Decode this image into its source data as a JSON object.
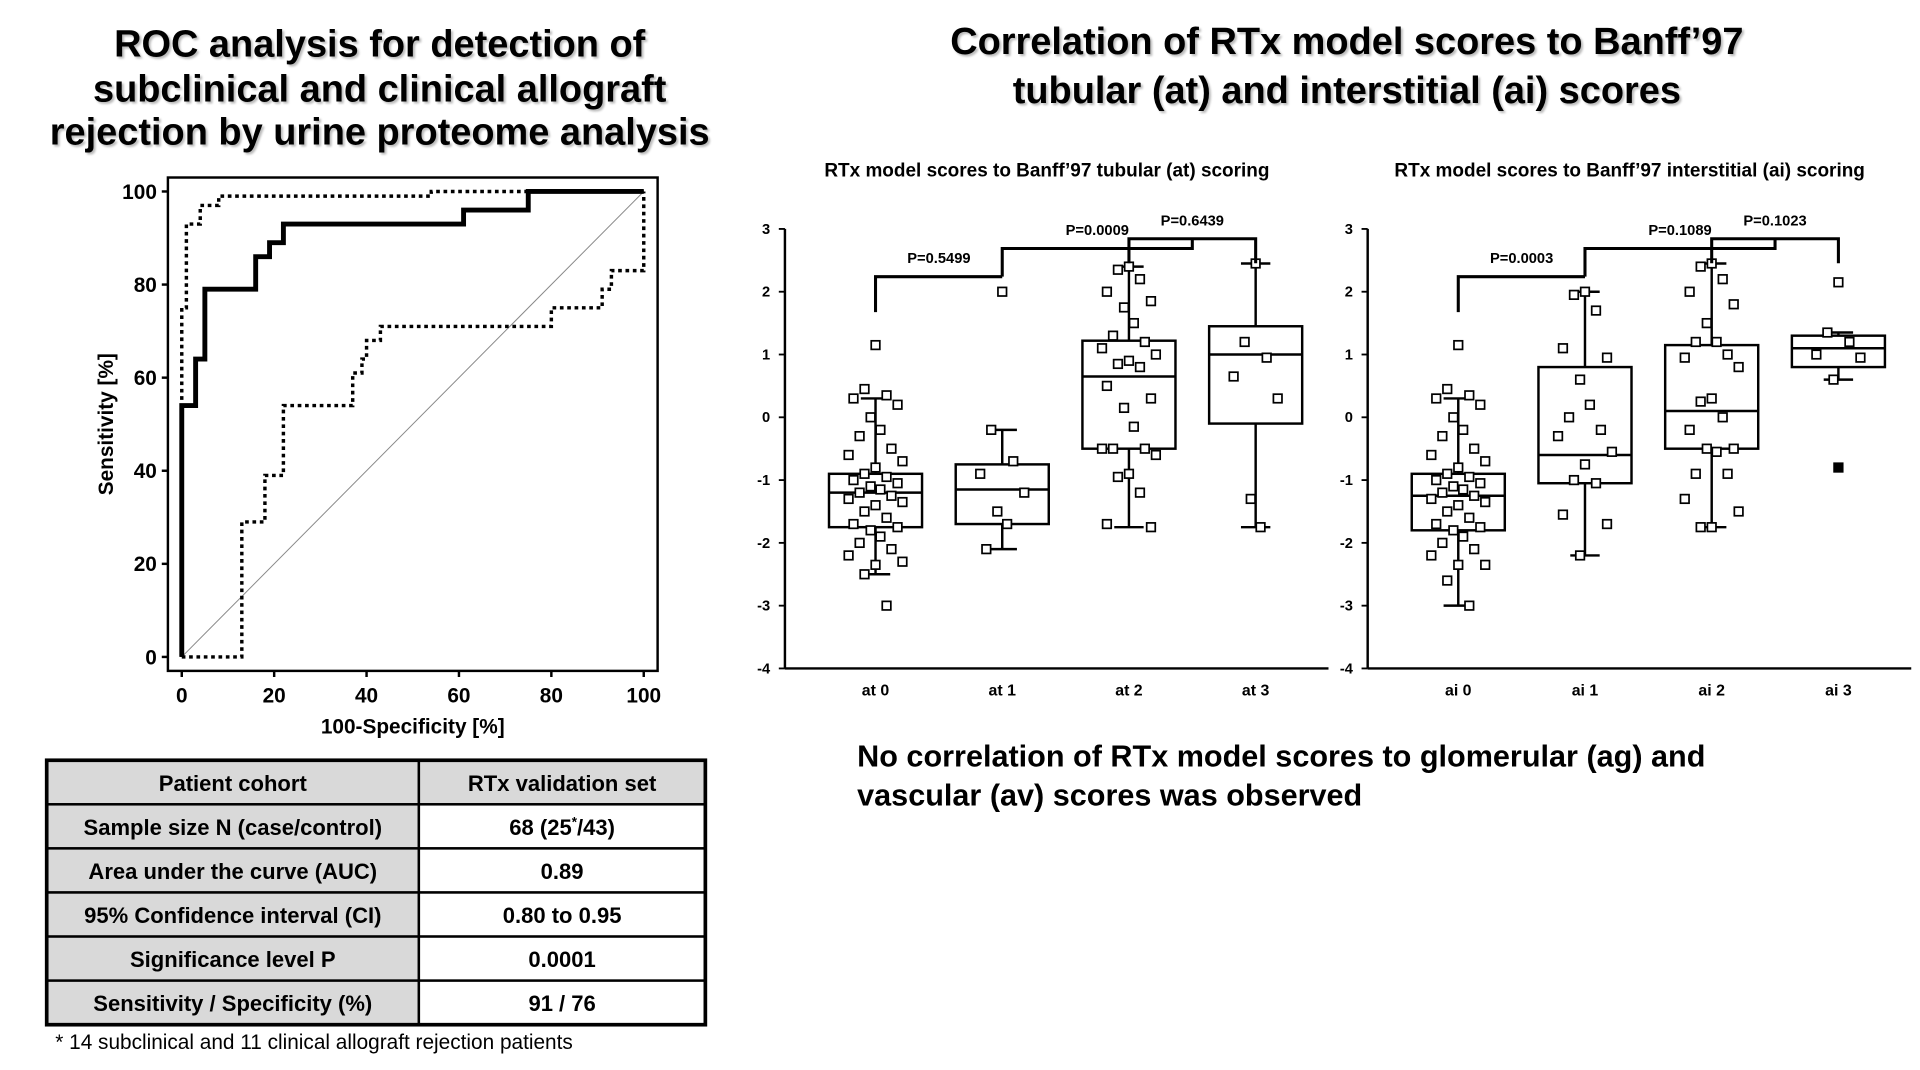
{
  "titles": {
    "left": [
      "ROC analysis for detection of",
      "subclinical and clinical allograft",
      "rejection by urine proteome analysis"
    ],
    "right": [
      "Correlation of RTx model scores to Banff’97",
      "tubular (at) and interstitial (ai) scores"
    ]
  },
  "note": [
    "No correlation of RTx model scores to glomerular (ag) and",
    "vascular (av) scores was observed"
  ],
  "chart_data": [
    {
      "type": "line",
      "xlabel": "100-Specificity [%]",
      "ylabel": "Sensitivity [%]",
      "xlim": [
        -3,
        103
      ],
      "ylim": [
        -3,
        103
      ],
      "xticks": [
        0,
        20,
        40,
        60,
        80,
        100
      ],
      "yticks": [
        0,
        20,
        40,
        60,
        80,
        100
      ],
      "series": [
        {
          "color": "#888888",
          "line_style": "thin",
          "x": [
            0,
            100
          ],
          "values": [
            0,
            100
          ]
        },
        {
          "color": "#000000",
          "line_style": "dotted",
          "x": [
            0,
            0,
            1,
            1,
            4,
            4,
            8,
            8,
            54,
            54,
            100
          ],
          "values": [
            0,
            75,
            75,
            93,
            93,
            97,
            97,
            99,
            99,
            100,
            100
          ]
        },
        {
          "color": "#000000",
          "line_style": "dotted",
          "x": [
            0,
            13,
            13,
            18,
            18,
            22,
            22,
            37,
            37,
            39,
            39,
            40,
            40,
            43,
            43,
            80,
            80,
            91,
            91,
            93,
            93,
            100,
            100
          ],
          "values": [
            0,
            0,
            29,
            29,
            39,
            39,
            54,
            54,
            61,
            61,
            64,
            64,
            68,
            68,
            71,
            71,
            75,
            75,
            79,
            79,
            83,
            83,
            100
          ]
        },
        {
          "color": "#000000",
          "line_style": "solid",
          "x": [
            0,
            0,
            3,
            3,
            5,
            5,
            16,
            16,
            19,
            19,
            22,
            22,
            61,
            61,
            75,
            75,
            100
          ],
          "values": [
            0,
            54,
            54,
            64,
            64,
            79,
            79,
            86,
            86,
            89,
            89,
            93,
            93,
            96,
            96,
            100,
            100
          ]
        }
      ]
    },
    {
      "type": "box",
      "title": "RTx model scores to Banff’97 tubular (at) scoring",
      "categories": [
        "at 0",
        "at 1",
        "at 2",
        "at 3"
      ],
      "ylim": [
        -4,
        3
      ],
      "yticks": [
        -4,
        -3,
        -2,
        -1,
        0,
        1,
        2,
        3
      ],
      "annotations": [
        "P=0.5499",
        "P=0.0009",
        "P=0.6439"
      ],
      "boxes": [
        {
          "whisker_low": -2.5,
          "q1": -1.75,
          "median": -1.2,
          "q3": -0.9,
          "whisker_high": 0.3,
          "points": [
            1.15,
            0.45,
            0.35,
            0.3,
            0.2,
            0.0,
            -0.2,
            -0.3,
            -0.5,
            -0.6,
            -0.7,
            -0.8,
            -0.9,
            -0.95,
            -1.0,
            -1.05,
            -1.1,
            -1.15,
            -1.2,
            -1.25,
            -1.3,
            -1.35,
            -1.4,
            -1.5,
            -1.6,
            -1.7,
            -1.75,
            -1.8,
            -1.9,
            -2.0,
            -2.1,
            -2.2,
            -2.3,
            -2.35,
            -2.5,
            -3.0
          ]
        },
        {
          "whisker_low": -2.1,
          "q1": -1.7,
          "median": -1.15,
          "q3": -0.75,
          "whisker_high": -0.2,
          "points": [
            2.0,
            -0.2,
            -0.7,
            -0.9,
            -1.2,
            -1.5,
            -1.7,
            -2.1
          ]
        },
        {
          "whisker_low": -1.75,
          "q1": -0.5,
          "median": 0.65,
          "q3": 1.22,
          "whisker_high": 2.4,
          "points": [
            2.4,
            2.35,
            2.2,
            2.0,
            1.85,
            1.75,
            1.5,
            1.3,
            1.2,
            1.1,
            1.0,
            0.9,
            0.85,
            0.8,
            0.5,
            0.3,
            0.15,
            -0.15,
            -0.5,
            -0.5,
            -0.5,
            -0.6,
            -0.9,
            -0.95,
            -1.2,
            -1.7,
            -1.75
          ]
        },
        {
          "whisker_low": -1.75,
          "q1": -0.1,
          "median": 1.0,
          "q3": 1.45,
          "whisker_high": 2.45,
          "points": [
            2.45,
            1.2,
            0.95,
            0.65,
            0.3,
            -1.3,
            -1.75
          ]
        }
      ]
    },
    {
      "type": "box",
      "title": "RTx model scores to Banff’97 interstitial (ai) scoring",
      "categories": [
        "ai 0",
        "ai 1",
        "ai 2",
        "ai 3"
      ],
      "ylim": [
        -4,
        3
      ],
      "yticks": [
        -4,
        -3,
        -2,
        -1,
        0,
        1,
        2,
        3
      ],
      "annotations": [
        "P=0.0003",
        "P=0.1089",
        "P=0.1023"
      ],
      "boxes": [
        {
          "whisker_low": -3.0,
          "q1": -1.8,
          "median": -1.25,
          "q3": -0.9,
          "whisker_high": 0.3,
          "points": [
            1.15,
            0.45,
            0.35,
            0.3,
            0.2,
            0.0,
            -0.2,
            -0.3,
            -0.5,
            -0.6,
            -0.7,
            -0.8,
            -0.9,
            -0.95,
            -1.0,
            -1.05,
            -1.1,
            -1.15,
            -1.2,
            -1.25,
            -1.3,
            -1.35,
            -1.4,
            -1.5,
            -1.6,
            -1.7,
            -1.75,
            -1.8,
            -1.9,
            -2.0,
            -2.1,
            -2.2,
            -2.35,
            -2.35,
            -2.6,
            -3.0
          ]
        },
        {
          "whisker_low": -2.2,
          "q1": -1.05,
          "median": -0.6,
          "q3": 0.8,
          "whisker_high": 2.0,
          "points": [
            2.0,
            1.95,
            1.7,
            1.1,
            0.95,
            0.6,
            0.2,
            0.0,
            -0.2,
            -0.3,
            -0.55,
            -0.75,
            -1.0,
            -1.05,
            -1.55,
            -1.7,
            -2.2
          ]
        },
        {
          "whisker_low": -1.75,
          "q1": -0.5,
          "median": 0.1,
          "q3": 1.15,
          "whisker_high": 2.45,
          "points": [
            2.45,
            2.4,
            2.2,
            2.0,
            1.8,
            1.5,
            1.2,
            1.2,
            1.0,
            0.95,
            0.8,
            0.3,
            0.25,
            0.0,
            -0.2,
            -0.5,
            -0.5,
            -0.55,
            -0.9,
            -0.9,
            -1.3,
            -1.5,
            -1.75,
            -1.75
          ]
        },
        {
          "whisker_low": 0.6,
          "q1": 0.8,
          "median": 1.1,
          "q3": 1.3,
          "whisker_high": 1.35,
          "points": [
            2.15,
            1.35,
            1.2,
            1.0,
            0.95,
            0.6
          ],
          "filled_points": [
            -0.8
          ]
        }
      ]
    }
  ],
  "table": {
    "header": [
      "Patient cohort",
      "RTx validation set"
    ],
    "rows": [
      [
        "Sample size N (case/control)",
        {
          "text": "68 (25",
          "sup": "*",
          "tail": "/43)"
        }
      ],
      [
        "Area under the curve (AUC)",
        "0.89"
      ],
      [
        "95% Confidence interval (CI)",
        "0.80 to 0.95"
      ],
      [
        "Significance level P",
        "0.0001"
      ],
      [
        "Sensitivity / Specificity (%)",
        "91 / 76"
      ]
    ],
    "footnote": "* 14 subclinical and 11 clinical allograft rejection patients"
  }
}
